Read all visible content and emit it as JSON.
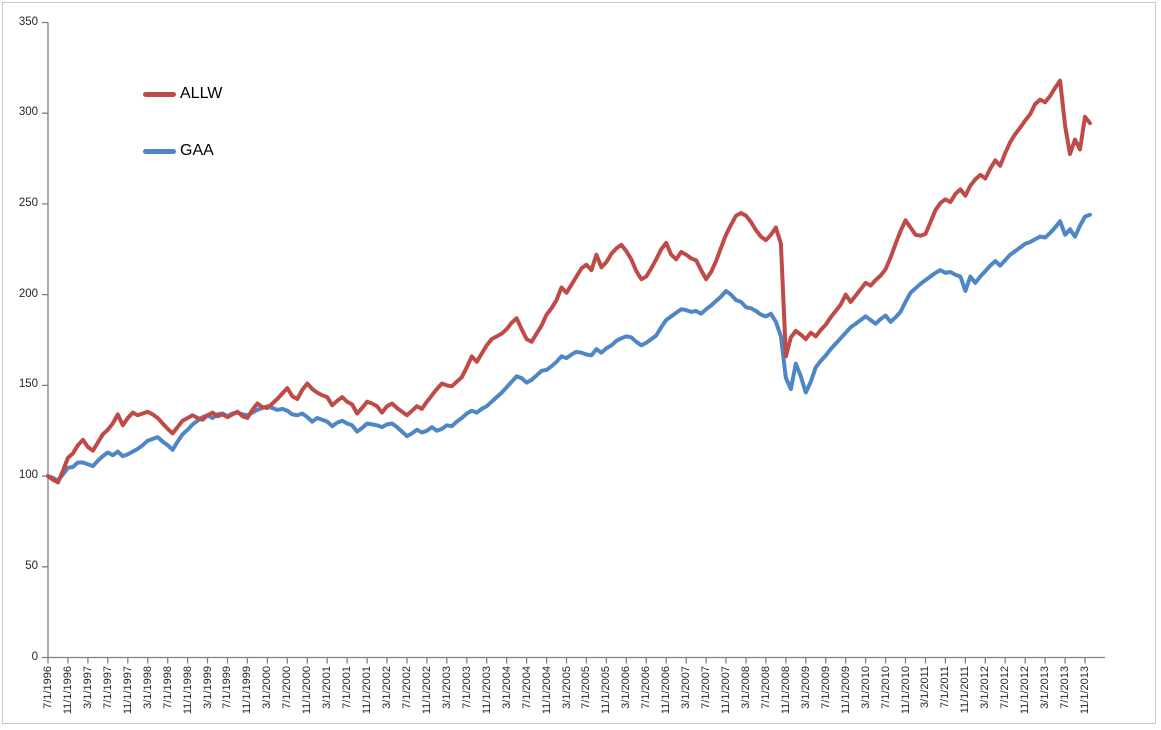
{
  "chart_data": {
    "type": "line",
    "title": "",
    "grid": false,
    "legend_position": "inside-top-left",
    "background_color": "#ffffff",
    "frame_border_color": "#c9c9c9",
    "axis_color": "#808080",
    "tick_label_color": "#262626",
    "y_axis": {
      "min": 0,
      "max": 350,
      "step": 50,
      "tick_labels": [
        "0",
        "50",
        "100",
        "150",
        "200",
        "250",
        "300",
        "350"
      ]
    },
    "x_axis": {
      "start_date": "7/1/1996",
      "end_date": "11/1/2013",
      "tick_every_months": 4,
      "label_rotation_deg": 90,
      "tick_labels": [
        "7/1/1996",
        "11/1/1996",
        "3/1/1997",
        "7/1/1997",
        "11/1/1997",
        "3/1/1998",
        "7/1/1998",
        "11/1/1998",
        "3/1/1999",
        "7/1/1999",
        "11/1/1999",
        "3/1/2000",
        "7/1/2000",
        "11/1/2000",
        "3/1/2001",
        "7/1/2001",
        "11/1/2001",
        "3/1/2002",
        "7/1/2002",
        "11/1/2002",
        "3/1/2003",
        "7/1/2003",
        "11/1/2003",
        "3/1/2004",
        "7/1/2004",
        "11/1/2004",
        "3/1/2005",
        "7/1/2005",
        "11/1/2005",
        "3/1/2006",
        "7/1/2006",
        "11/1/2006",
        "3/1/2007",
        "7/1/2007",
        "11/1/2007",
        "3/1/2008",
        "7/1/2008",
        "11/1/2008",
        "3/1/2009",
        "7/1/2009",
        "11/1/2009",
        "3/1/2010",
        "7/1/2010",
        "11/1/2010",
        "3/1/2011",
        "7/1/2011",
        "11/1/2011",
        "3/1/2012",
        "7/1/2012",
        "11/1/2012",
        "3/1/2013",
        "7/1/2013",
        "11/1/2013"
      ]
    },
    "series": [
      {
        "name": "ALLW",
        "color": "#be4b48",
        "start_month": "7/1/1996",
        "frequency": "monthly",
        "base_value": 100,
        "values": [
          100,
          98,
          96.5,
          103,
          110,
          112.5,
          117,
          120,
          116,
          114,
          118.5,
          123,
          125.5,
          129,
          134,
          128,
          132,
          135,
          133.5,
          134.5,
          135.5,
          134,
          132,
          129,
          126,
          123.5,
          127,
          130.5,
          132,
          133.5,
          132,
          131,
          133.5,
          135,
          133,
          134,
          132.5,
          134,
          135.5,
          133,
          132,
          136.5,
          140,
          138,
          137.5,
          140,
          142.5,
          145.5,
          148.5,
          144,
          142.5,
          147.5,
          151,
          148,
          146,
          144.5,
          143.5,
          139,
          141.5,
          143.5,
          141,
          139.5,
          134.5,
          137.5,
          141,
          140,
          138.5,
          135,
          138.5,
          140,
          137.5,
          135.5,
          133.5,
          136,
          138.5,
          137,
          141,
          144.5,
          148,
          151,
          150,
          149.5,
          152,
          154.5,
          160,
          166,
          163,
          167.5,
          172,
          175.5,
          177,
          178.5,
          181,
          184.5,
          187,
          181,
          175.5,
          174,
          178.5,
          183,
          189,
          192.5,
          197,
          204,
          201,
          205.5,
          210,
          214.5,
          216.5,
          213.5,
          222,
          215,
          218,
          222.5,
          225.5,
          227.5,
          224,
          219.5,
          213,
          208.5,
          210,
          214.5,
          219.5,
          225,
          228.5,
          222,
          219.5,
          223.5,
          222,
          220,
          219,
          213.5,
          208.5,
          212.5,
          218.5,
          226,
          233,
          238.5,
          243.5,
          245,
          243.5,
          240,
          235.5,
          232,
          230,
          233,
          237,
          228,
          166,
          176.5,
          180,
          178,
          175.5,
          179,
          177,
          180.5,
          183.5,
          187.5,
          191,
          194.5,
          200,
          196,
          199.5,
          203,
          206.5,
          205,
          208,
          210.5,
          214,
          220.5,
          228,
          235,
          241,
          237,
          233,
          232.5,
          233.5,
          240,
          246.5,
          250.5,
          252.5,
          251,
          255.5,
          258,
          254.5,
          260,
          263.5,
          266,
          264,
          269.5,
          274,
          271,
          278,
          284,
          288.5,
          292,
          296,
          299.5,
          305,
          307.5,
          306,
          309.5,
          314,
          318,
          293,
          277.5,
          285.5,
          280,
          298,
          294.5
        ]
      },
      {
        "name": "GAA",
        "color": "#4f86c5",
        "start_month": "7/1/1996",
        "frequency": "monthly",
        "base_value": 100,
        "values": [
          100,
          99,
          97.5,
          101,
          104.5,
          105,
          107.5,
          107.5,
          106.5,
          105.5,
          108.5,
          111,
          113,
          111.5,
          113.5,
          111,
          112,
          113.5,
          115,
          117,
          119.5,
          120.5,
          121.5,
          119,
          117,
          114.5,
          119,
          123,
          125.5,
          128.5,
          130.5,
          132.5,
          133.5,
          132,
          134,
          134.5,
          133,
          134.5,
          135,
          134,
          133.5,
          135,
          136.5,
          137.5,
          138.5,
          137.5,
          136.5,
          137,
          136,
          134,
          133.5,
          134.5,
          132.5,
          130,
          132,
          131,
          130,
          127.5,
          129.5,
          130.5,
          129,
          128,
          124.5,
          126.5,
          129,
          128.5,
          128,
          127,
          128.5,
          129,
          127,
          124.5,
          122,
          123.5,
          125.5,
          124,
          125,
          127,
          125,
          126,
          128,
          127.5,
          130,
          132,
          134.5,
          136,
          135,
          137,
          138.5,
          141,
          143.5,
          146,
          149,
          152,
          155,
          154,
          151.5,
          153,
          155.5,
          158,
          158.5,
          160.5,
          163,
          166,
          165,
          167,
          168.5,
          168,
          167,
          166.5,
          170,
          168,
          170.5,
          172,
          174.5,
          176,
          177,
          176.5,
          174,
          172,
          173.5,
          175.5,
          177.5,
          182,
          186,
          188,
          190,
          192,
          191.5,
          190.5,
          191,
          189.5,
          192,
          194,
          196.5,
          199,
          202,
          200,
          197,
          196,
          193,
          192.5,
          191,
          189,
          188,
          189.5,
          185,
          177,
          154,
          148,
          162,
          155,
          146,
          152,
          160,
          163.5,
          166.5,
          170,
          173,
          176,
          179,
          182,
          184,
          186,
          188,
          186,
          184,
          186.5,
          188.5,
          185,
          187.5,
          190.5,
          196,
          201,
          203.5,
          206,
          208,
          210,
          212,
          213.5,
          212,
          212.5,
          211,
          210,
          202,
          210,
          206.5,
          210,
          213,
          216,
          218.5,
          216,
          219,
          222,
          224,
          226,
          228,
          229,
          230.5,
          232,
          231.5,
          234,
          237,
          240.5,
          233,
          236,
          232,
          238,
          243,
          244
        ]
      }
    ]
  }
}
